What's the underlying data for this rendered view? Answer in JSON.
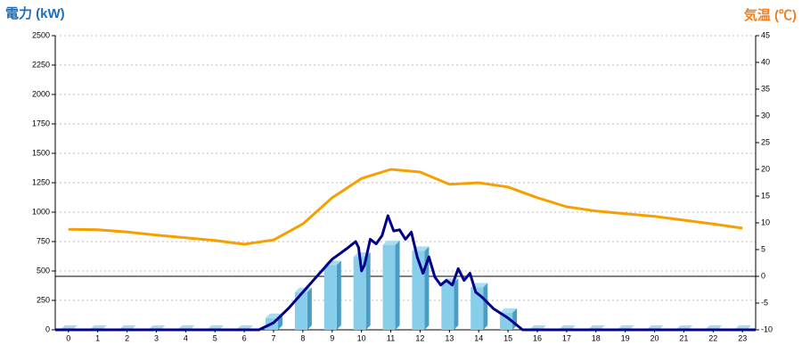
{
  "chart_data": {
    "type": "bar",
    "title": "電力 (kW)",
    "y2_title": "気温 (℃)",
    "xlim": [
      -0.45,
      23.45
    ],
    "xticks": [
      0,
      1,
      2,
      3,
      4,
      5,
      6,
      7,
      8,
      9,
      10,
      11,
      12,
      13,
      14,
      15,
      16,
      17,
      18,
      19,
      20,
      21,
      22,
      23
    ],
    "ylim": [
      0,
      2500
    ],
    "yticks": [
      0,
      250,
      500,
      750,
      1000,
      1250,
      1500,
      1750,
      2000,
      2250,
      2500
    ],
    "y2lim": [
      -10,
      45
    ],
    "y2ticks": [
      -10,
      -5,
      0,
      5,
      10,
      15,
      20,
      25,
      30,
      35,
      40,
      45
    ],
    "grid": true,
    "series": [
      {
        "type": "bar",
        "color": "#87ceeb",
        "x": [
          0,
          1,
          2,
          3,
          4,
          5,
          6,
          7,
          8,
          9,
          10,
          11,
          12,
          13,
          14,
          15,
          16,
          17,
          18,
          19,
          20,
          21,
          22,
          23
        ],
        "values": [
          0,
          0,
          0,
          0,
          0,
          0,
          0,
          100,
          320,
          550,
          620,
          720,
          670,
          400,
          360,
          145,
          0,
          0,
          0,
          0,
          0,
          0,
          0,
          0
        ]
      },
      {
        "type": "line",
        "color": "#00008b",
        "x": [
          -0.45,
          6.5,
          7,
          7.5,
          8,
          8.5,
          9,
          9.5,
          9.8,
          9.9,
          10,
          10.1,
          10.3,
          10.5,
          10.7,
          10.9,
          11.1,
          11.3,
          11.5,
          11.7,
          11.9,
          12.1,
          12.3,
          12.5,
          12.7,
          12.9,
          13.1,
          13.3,
          13.5,
          13.7,
          13.9,
          14.1,
          14.5,
          15,
          15.5,
          23.45
        ],
        "values": [
          0,
          0,
          60,
          180,
          320,
          460,
          600,
          690,
          750,
          700,
          500,
          550,
          770,
          730,
          800,
          970,
          840,
          850,
          770,
          830,
          620,
          480,
          620,
          450,
          380,
          420,
          380,
          520,
          420,
          480,
          320,
          280,
          180,
          100,
          0,
          0
        ]
      },
      {
        "type": "line",
        "axis": "y2",
        "color": "#f5a000",
        "x": [
          0,
          1,
          2,
          3,
          4,
          5,
          6,
          7,
          8,
          9,
          10,
          11,
          12,
          13,
          14,
          15,
          16,
          17,
          18,
          19,
          20,
          21,
          22,
          23
        ],
        "values": [
          8.8,
          8.7,
          8.3,
          7.7,
          7.2,
          6.7,
          6,
          6.8,
          9.8,
          14.7,
          18.3,
          20,
          19.5,
          17.2,
          17.5,
          16.7,
          14.7,
          13,
          12.2,
          11.7,
          11.2,
          10.5,
          9.8,
          9
        ]
      }
    ]
  }
}
